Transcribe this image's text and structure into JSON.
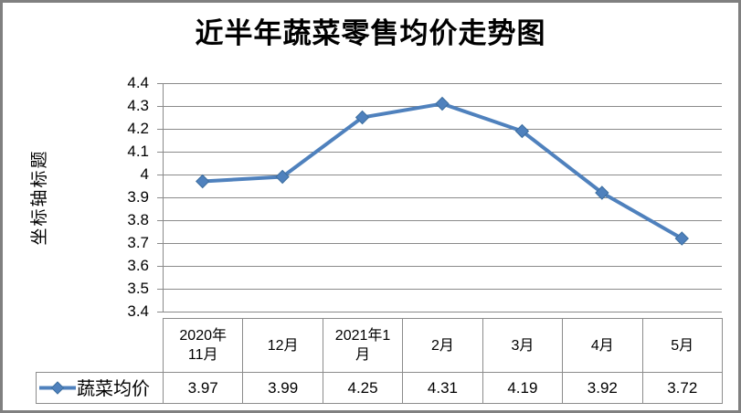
{
  "window": {
    "background": "#FFFFFF",
    "border_color": "#808080"
  },
  "chart_data": {
    "type": "line",
    "title": "近半年蔬菜零售均价走势图",
    "y_axis_title": "坐标轴标题",
    "categories": [
      "2020年11月",
      "12月",
      "2021年1月",
      "2月",
      "3月",
      "4月",
      "5月"
    ],
    "categories_display": [
      [
        "2020年",
        "11月"
      ],
      [
        "12月"
      ],
      [
        "2021年1",
        "月"
      ],
      [
        "2月"
      ],
      [
        "3月"
      ],
      [
        "4月"
      ],
      [
        "5月"
      ]
    ],
    "series": [
      {
        "name": "蔬菜均价",
        "values": [
          3.97,
          3.99,
          4.25,
          4.31,
          4.19,
          3.92,
          3.72
        ],
        "values_display": [
          "3.97",
          "3.99",
          "4.25",
          "4.31",
          "4.19",
          "3.92",
          "3.72"
        ],
        "marker": "diamond"
      }
    ],
    "ylim": [
      3.4,
      4.4
    ],
    "ytick_step": 0.1,
    "ytick_labels": [
      "4.4",
      "4.3",
      "4.2",
      "4.1",
      "4",
      "3.9",
      "3.8",
      "3.7",
      "3.6",
      "3.5",
      "3.4"
    ],
    "grid": true,
    "data_table_shown": true,
    "legend_position": "data-table-left",
    "colors": {
      "series_line": "#4F81BD",
      "marker_fill": "#4F81BD",
      "marker_edge": "#3C6E9F",
      "gridline": "#8A8A8A",
      "axis_line": "#8A8A8A",
      "table_border": "#8C8C8C",
      "text": "#000000"
    }
  }
}
